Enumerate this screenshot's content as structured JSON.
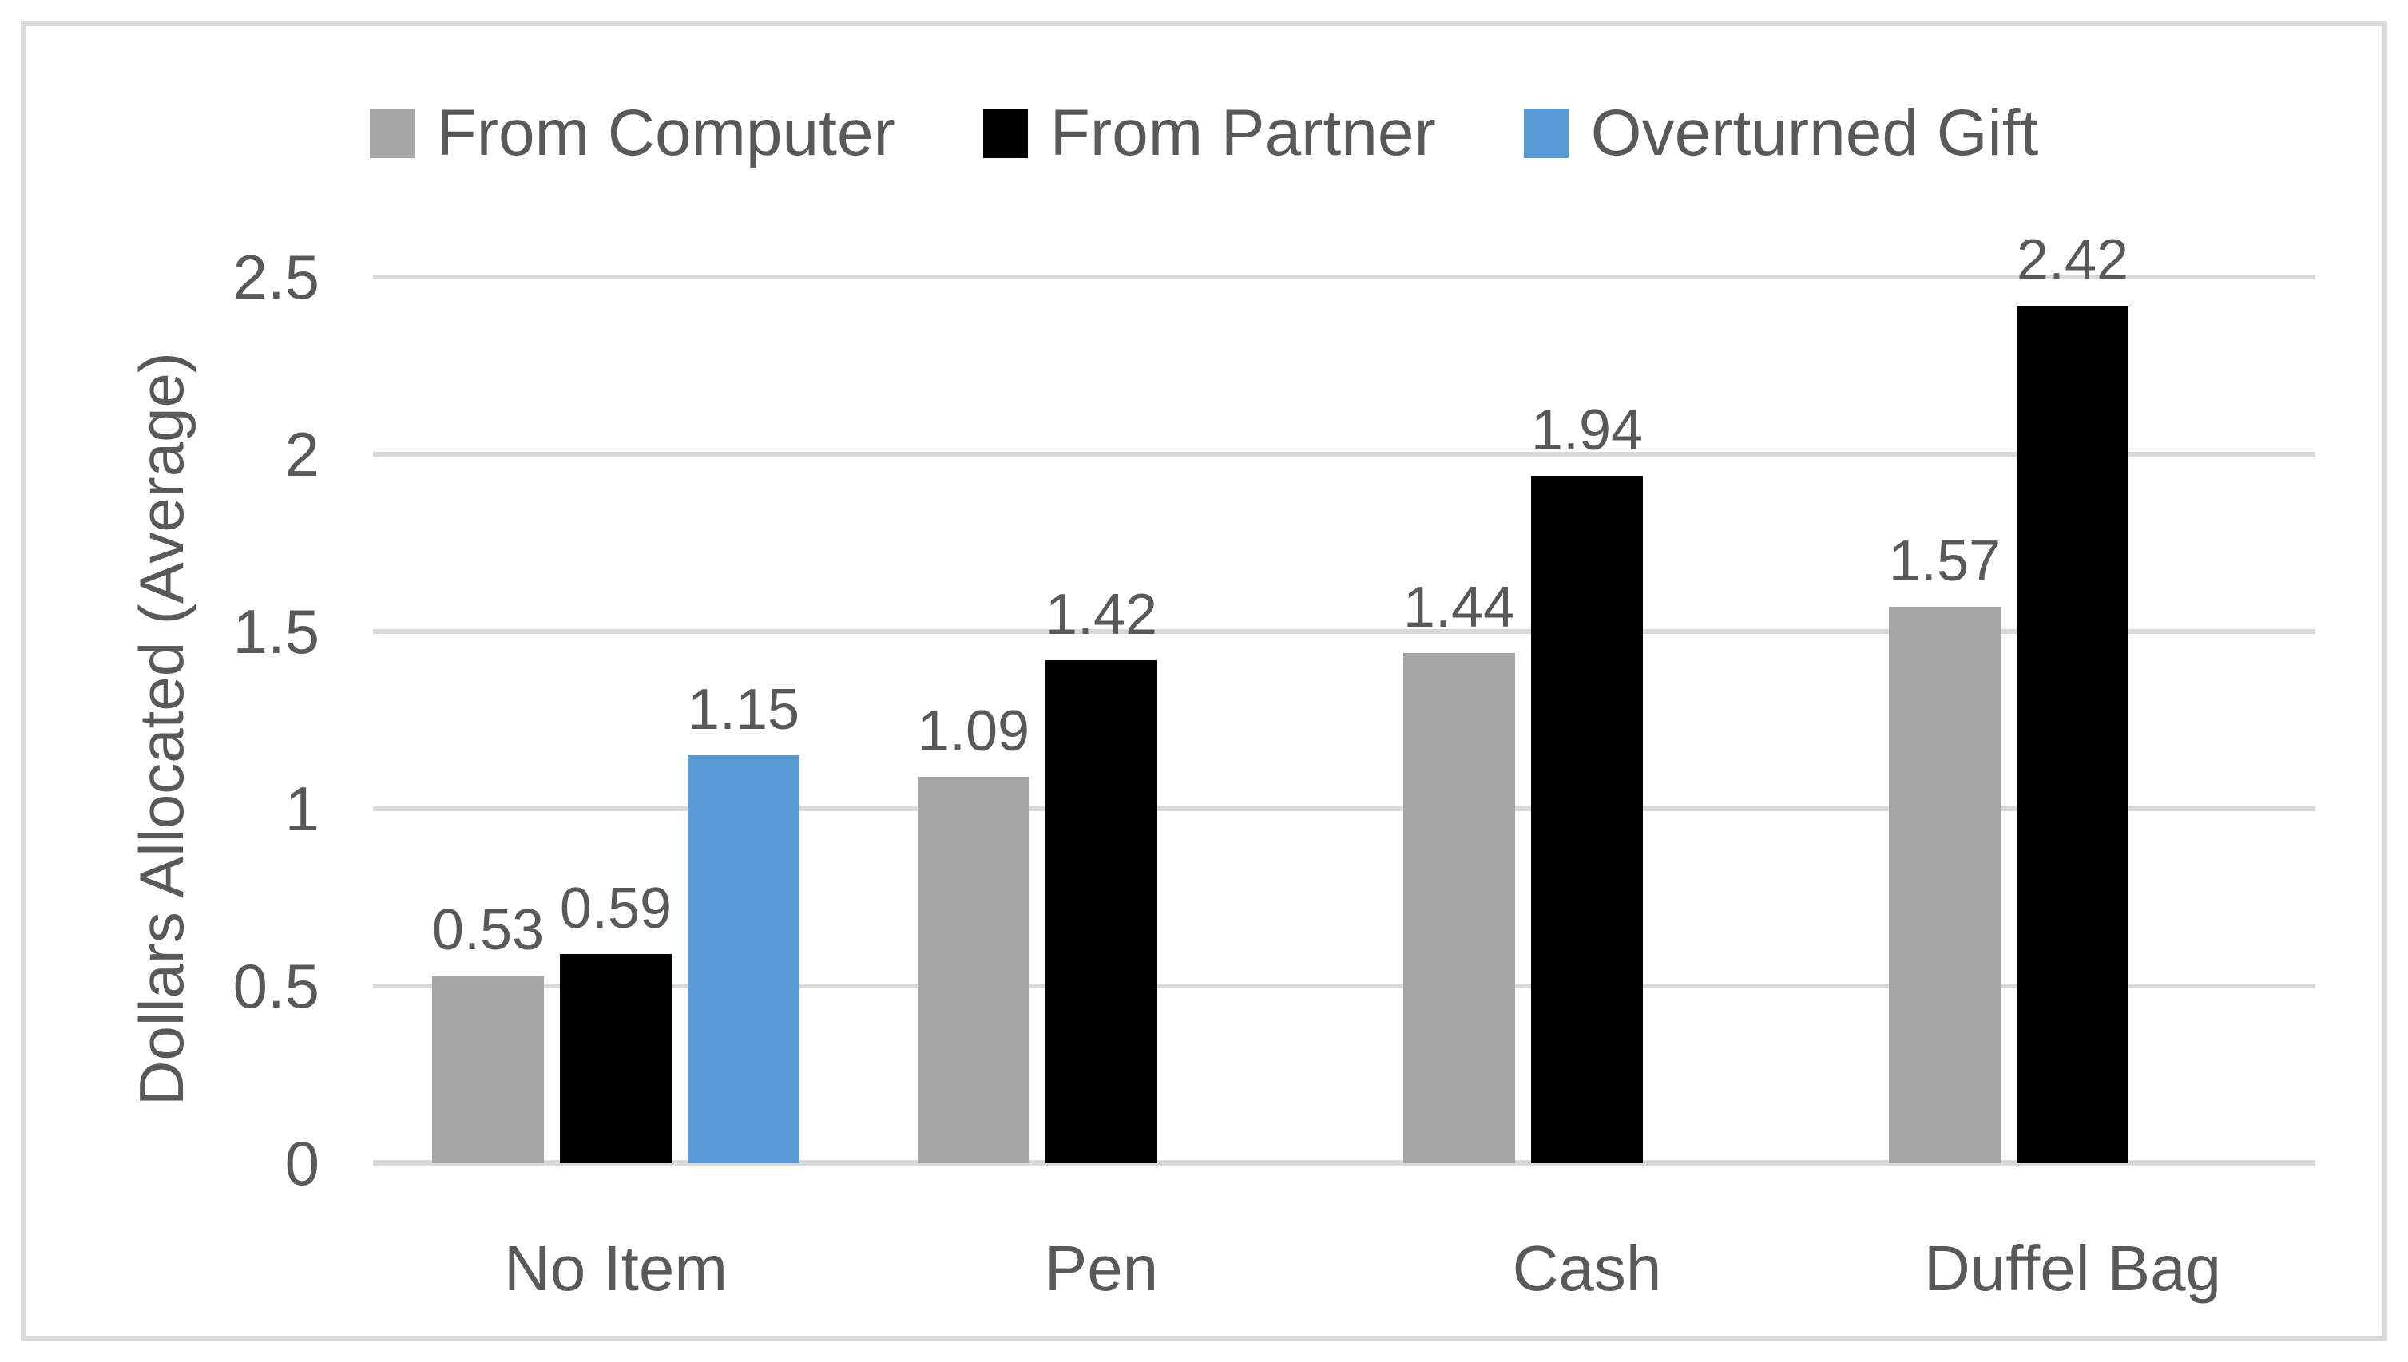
{
  "figure": {
    "background": "#FFFFFF",
    "border_color": "#D9D9D9"
  },
  "colors": {
    "text": "#595959",
    "gridline": "#D9D9D9",
    "axis_line": "#D9D9D9"
  },
  "chart_data": {
    "type": "bar",
    "title": "",
    "categories": [
      "No Item",
      "Pen",
      "Cash",
      "Duffel Bag"
    ],
    "series": [
      {
        "name": "From Computer",
        "color": "#A6A6A6",
        "values": [
          0.53,
          1.09,
          1.44,
          1.57
        ]
      },
      {
        "name": "From Partner",
        "color": "#000000",
        "values": [
          0.59,
          1.42,
          1.94,
          2.42
        ]
      },
      {
        "name": "Overturned Gift",
        "color": "#5B9BD5",
        "values": [
          1.15,
          null,
          null,
          null
        ]
      }
    ],
    "data_labels": {
      "From Computer": [
        "0.53",
        "1.09",
        "1.44",
        "1.57"
      ],
      "From Partner": [
        "0.59",
        "1.42",
        "1.94",
        "2.42"
      ],
      "Overturned Gift": [
        "1.15",
        "",
        "",
        ""
      ]
    },
    "xlabel": "",
    "ylabel": "Dollars Allocated (Average)",
    "ylim": [
      0,
      2.5
    ],
    "ytick_interval": 0.5,
    "ytick_labels": [
      "0",
      "0.5",
      "1",
      "1.5",
      "2",
      "2.5"
    ],
    "grid": true,
    "legend_position": "top"
  }
}
